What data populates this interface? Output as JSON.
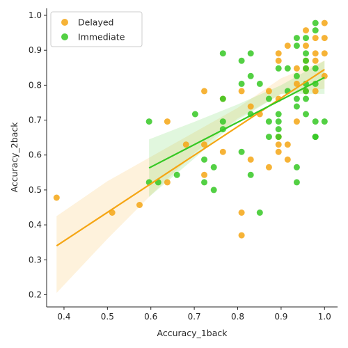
{
  "chart_data": {
    "type": "scatter",
    "xlabel": "Accuracy_1back",
    "ylabel": "Accuracy_2back",
    "xlim": [
      0.36,
      1.03
    ],
    "ylim": [
      0.165,
      1.02
    ],
    "xticks": [
      0.4,
      0.5,
      0.6,
      0.7,
      0.8,
      0.9,
      1.0
    ],
    "xtick_labels": [
      "0.4",
      "0.5",
      "0.6",
      "0.7",
      "0.8",
      "0.9",
      "1.0"
    ],
    "yticks": [
      0.2,
      0.3,
      0.4,
      0.5,
      0.6,
      0.7,
      0.8,
      0.9,
      1.0
    ],
    "ytick_labels": [
      "0.2",
      "0.3",
      "0.4",
      "0.5",
      "0.6",
      "0.7",
      "0.8",
      "0.9",
      "1.0"
    ],
    "legend_position": "top-left",
    "grid": false,
    "series": [
      {
        "name": "Delayed",
        "color": "#f5a614",
        "regression": {
          "x": [
            0.383,
            1.0
          ],
          "y": [
            0.34,
            0.845
          ]
        },
        "ci": {
          "x": [
            0.383,
            0.5,
            0.6,
            0.7,
            0.8,
            0.9,
            1.0
          ],
          "upper": [
            0.425,
            0.525,
            0.595,
            0.665,
            0.735,
            0.82,
            0.87
          ],
          "lower": [
            0.205,
            0.36,
            0.485,
            0.605,
            0.705,
            0.775,
            0.79
          ]
        },
        "points": [
          [
            0.383,
            0.478
          ],
          [
            0.511,
            0.435
          ],
          [
            0.574,
            0.457
          ],
          [
            0.638,
            0.522
          ],
          [
            0.638,
            0.696
          ],
          [
            0.681,
            0.63
          ],
          [
            0.723,
            0.783
          ],
          [
            0.723,
            0.63
          ],
          [
            0.723,
            0.543
          ],
          [
            0.766,
            0.761
          ],
          [
            0.766,
            0.609
          ],
          [
            0.809,
            0.783
          ],
          [
            0.809,
            0.435
          ],
          [
            0.809,
            0.37
          ],
          [
            0.83,
            0.739
          ],
          [
            0.83,
            0.587
          ],
          [
            0.851,
            0.717
          ],
          [
            0.872,
            0.783
          ],
          [
            0.872,
            0.565
          ],
          [
            0.894,
            0.891
          ],
          [
            0.894,
            0.87
          ],
          [
            0.894,
            0.761
          ],
          [
            0.894,
            0.652
          ],
          [
            0.894,
            0.63
          ],
          [
            0.894,
            0.609
          ],
          [
            0.915,
            0.913
          ],
          [
            0.915,
            0.63
          ],
          [
            0.915,
            0.587
          ],
          [
            0.936,
            0.848
          ],
          [
            0.936,
            0.804
          ],
          [
            0.936,
            0.696
          ],
          [
            0.957,
            0.957
          ],
          [
            0.957,
            0.913
          ],
          [
            0.957,
            0.87
          ],
          [
            0.957,
            0.848
          ],
          [
            0.957,
            0.783
          ],
          [
            0.979,
            0.935
          ],
          [
            0.979,
            0.891
          ],
          [
            0.979,
            0.87
          ],
          [
            0.979,
            0.783
          ],
          [
            1.0,
            0.978
          ],
          [
            1.0,
            0.935
          ],
          [
            1.0,
            0.891
          ],
          [
            1.0,
            0.826
          ]
        ]
      },
      {
        "name": "Immediate",
        "color": "#35c823",
        "regression": {
          "x": [
            0.596,
            1.0
          ],
          "y": [
            0.563,
            0.822
          ]
        },
        "ci": {
          "x": [
            0.596,
            0.7,
            0.8,
            0.9,
            1.0
          ],
          "upper": [
            0.645,
            0.695,
            0.745,
            0.8,
            0.87
          ],
          "lower": [
            0.48,
            0.59,
            0.7,
            0.775,
            0.775
          ]
        },
        "points": [
          [
            0.596,
            0.696
          ],
          [
            0.596,
            0.522
          ],
          [
            0.617,
            0.522
          ],
          [
            0.66,
            0.543
          ],
          [
            0.702,
            0.717
          ],
          [
            0.723,
            0.587
          ],
          [
            0.723,
            0.522
          ],
          [
            0.745,
            0.565
          ],
          [
            0.745,
            0.5
          ],
          [
            0.766,
            0.891
          ],
          [
            0.766,
            0.761
          ],
          [
            0.766,
            0.696
          ],
          [
            0.766,
            0.674
          ],
          [
            0.809,
            0.87
          ],
          [
            0.809,
            0.804
          ],
          [
            0.809,
            0.609
          ],
          [
            0.83,
            0.891
          ],
          [
            0.83,
            0.826
          ],
          [
            0.83,
            0.717
          ],
          [
            0.83,
            0.543
          ],
          [
            0.851,
            0.804
          ],
          [
            0.851,
            0.435
          ],
          [
            0.872,
            0.761
          ],
          [
            0.872,
            0.696
          ],
          [
            0.872,
            0.652
          ],
          [
            0.894,
            0.848
          ],
          [
            0.894,
            0.717
          ],
          [
            0.894,
            0.696
          ],
          [
            0.894,
            0.674
          ],
          [
            0.894,
            0.652
          ],
          [
            0.915,
            0.848
          ],
          [
            0.915,
            0.783
          ],
          [
            0.936,
            0.935
          ],
          [
            0.936,
            0.913
          ],
          [
            0.936,
            0.826
          ],
          [
            0.936,
            0.761
          ],
          [
            0.936,
            0.739
          ],
          [
            0.936,
            0.565
          ],
          [
            0.936,
            0.522
          ],
          [
            0.957,
            0.935
          ],
          [
            0.957,
            0.891
          ],
          [
            0.957,
            0.87
          ],
          [
            0.957,
            0.848
          ],
          [
            0.957,
            0.804
          ],
          [
            0.957,
            0.783
          ],
          [
            0.957,
            0.761
          ],
          [
            0.957,
            0.717
          ],
          [
            0.979,
            0.978
          ],
          [
            0.979,
            0.957
          ],
          [
            0.979,
            0.848
          ],
          [
            0.979,
            0.804
          ],
          [
            0.979,
            0.696
          ],
          [
            0.979,
            0.652
          ],
          [
            0.979,
            0.652
          ],
          [
            1.0,
            0.696
          ]
        ]
      }
    ]
  }
}
